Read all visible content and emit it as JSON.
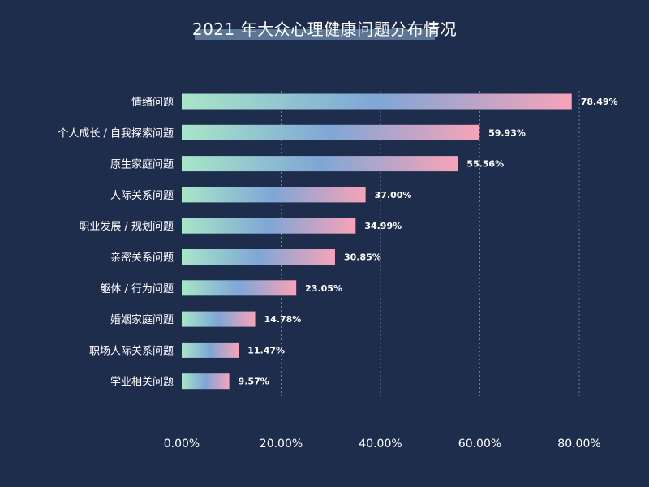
{
  "chart_data": {
    "type": "bar",
    "orientation": "horizontal",
    "title": "2021 年大众心理健康问题分布情况",
    "categories": [
      "情绪问题",
      "个人成长 / 自我探索问题",
      "原生家庭问题",
      "人际关系问题",
      "职业发展 / 规划问题",
      "亲密关系问题",
      "躯体 / 行为问题",
      "婚姻家庭问题",
      "职场人际关系问题",
      "学业相关问题"
    ],
    "values": [
      78.49,
      59.93,
      55.56,
      37.0,
      34.99,
      30.85,
      23.05,
      14.78,
      11.47,
      9.57
    ],
    "value_labels": [
      "78.49%",
      "59.93%",
      "55.56%",
      "37.00%",
      "34.99%",
      "30.85%",
      "23.05%",
      "14.78%",
      "11.47%",
      "9.57%"
    ],
    "xlim": [
      0,
      80
    ],
    "xticks": [
      0,
      20,
      40,
      60,
      80
    ],
    "xtick_labels": [
      "0.00%",
      "20.00%",
      "40.00%",
      "60.00%",
      "80.00%"
    ],
    "xlabel": "",
    "ylabel": "",
    "grid": "vertical dotted",
    "legend": "none",
    "colors": {
      "background": "#1f2d4d",
      "bar_gradient_start": "#a8e6c8",
      "bar_gradient_mid": "#7fa6d6",
      "bar_gradient_end": "#f7a3b8",
      "title_highlight": "#5a7694",
      "text": "#ffffff",
      "grid": "#6b7b99"
    }
  }
}
